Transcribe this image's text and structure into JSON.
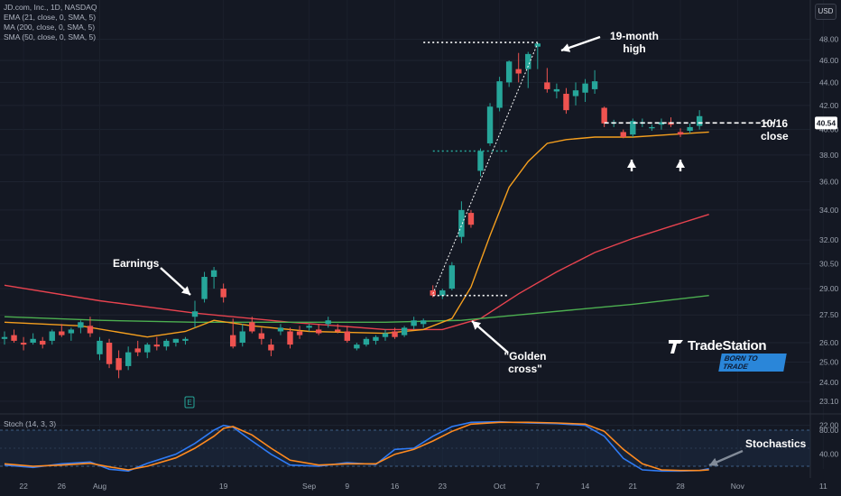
{
  "legend": {
    "title": "JD.com, Inc., 1D, NASDAQ",
    "ema": "EMA (21, close, 0, SMA, 5)",
    "ma": "MA (200, close, 0, SMA, 5)",
    "sma": "SMA (50, close, 0, SMA, 5)",
    "stoch": "Stoch (14, 3, 3)"
  },
  "currency": "USD",
  "brand": {
    "name": "TradeStation",
    "tagline": "BORN TO TRADE"
  },
  "annotations": {
    "high": "19-month high",
    "close": "10/16 close",
    "earnings": "Earnings",
    "golden": "\"Golden cross\"",
    "stoch": "Stochastics"
  },
  "colors": {
    "background": "#141823",
    "up": "#26a69a",
    "down": "#ef5350",
    "ema21": "#f59f1e",
    "ma200": "#4caf50",
    "sma50": "#e8434f",
    "stoch_k": "#2f7bf5",
    "stoch_d": "#ff8a1f"
  },
  "chart_data": [
    {
      "type": "candlestick",
      "symbol": "JD.com, Inc.",
      "interval": "1D",
      "exchange": "NASDAQ",
      "y_axis": {
        "scale": "log",
        "ticks": [
          "48.00",
          "46.00",
          "44.00",
          "42.00",
          "40.00",
          "38.00",
          "36.00",
          "34.00",
          "32.00",
          "30.50",
          "29.00",
          "27.50",
          "26.00",
          "25.00",
          "24.00",
          "23.10",
          "22.00"
        ],
        "last_price_label": "40.54",
        "ylim": [
          21.5,
          50
        ]
      },
      "x_axis": {
        "ticks": [
          "22",
          "26",
          "Aug",
          "19",
          "Sep",
          "9",
          "16",
          "23",
          "Oct",
          "7",
          "14",
          "21",
          "28",
          "Nov",
          "11"
        ]
      },
      "candles": [
        {
          "d": "07-18",
          "o": 26.2,
          "h": 26.6,
          "l": 25.9,
          "c": 26.3
        },
        {
          "d": "07-19",
          "o": 26.4,
          "h": 26.7,
          "l": 26.0,
          "c": 26.1
        },
        {
          "d": "07-22",
          "o": 26.0,
          "h": 26.3,
          "l": 25.6,
          "c": 25.9
        },
        {
          "d": "07-23",
          "o": 26.0,
          "h": 26.5,
          "l": 25.9,
          "c": 26.2
        },
        {
          "d": "07-24",
          "o": 26.1,
          "h": 26.3,
          "l": 25.7,
          "c": 25.9
        },
        {
          "d": "07-25",
          "o": 26.1,
          "h": 26.7,
          "l": 25.9,
          "c": 26.6
        },
        {
          "d": "07-26",
          "o": 26.6,
          "h": 27.0,
          "l": 26.3,
          "c": 26.4
        },
        {
          "d": "07-29",
          "o": 26.5,
          "h": 26.8,
          "l": 26.1,
          "c": 26.7
        },
        {
          "d": "07-30",
          "o": 26.8,
          "h": 27.2,
          "l": 26.5,
          "c": 27.1
        },
        {
          "d": "07-31",
          "o": 26.9,
          "h": 27.4,
          "l": 26.3,
          "c": 26.5
        },
        {
          "d": "08-01",
          "o": 25.4,
          "h": 26.3,
          "l": 25.1,
          "c": 26.1
        },
        {
          "d": "08-02",
          "o": 26.0,
          "h": 26.2,
          "l": 24.7,
          "c": 24.9
        },
        {
          "d": "08-05",
          "o": 25.2,
          "h": 25.6,
          "l": 24.2,
          "c": 24.6
        },
        {
          "d": "08-06",
          "o": 24.8,
          "h": 25.8,
          "l": 24.6,
          "c": 25.5
        },
        {
          "d": "08-07",
          "o": 25.7,
          "h": 26.1,
          "l": 25.3,
          "c": 25.5
        },
        {
          "d": "08-08",
          "o": 25.5,
          "h": 26.0,
          "l": 25.2,
          "c": 25.9
        },
        {
          "d": "08-09",
          "o": 25.9,
          "h": 26.3,
          "l": 25.6,
          "c": 25.8
        },
        {
          "d": "08-12",
          "o": 25.8,
          "h": 26.2,
          "l": 25.6,
          "c": 26.1
        },
        {
          "d": "08-13",
          "o": 26.0,
          "h": 26.2,
          "l": 25.8,
          "c": 26.2
        },
        {
          "d": "08-14",
          "o": 26.1,
          "h": 26.3,
          "l": 25.9,
          "c": 26.2
        },
        {
          "d": "08-15",
          "o": 27.4,
          "h": 28.3,
          "l": 26.8,
          "c": 27.7
        },
        {
          "d": "08-16",
          "o": 28.4,
          "h": 30.0,
          "l": 28.2,
          "c": 29.7
        },
        {
          "d": "08-19",
          "o": 29.7,
          "h": 30.3,
          "l": 29.0,
          "c": 30.1
        },
        {
          "d": "08-20",
          "o": 29.0,
          "h": 29.3,
          "l": 28.2,
          "c": 28.5
        },
        {
          "d": "08-21",
          "o": 26.4,
          "h": 27.3,
          "l": 25.7,
          "c": 25.8
        },
        {
          "d": "08-22",
          "o": 26.0,
          "h": 27.0,
          "l": 25.8,
          "c": 26.6
        },
        {
          "d": "08-23",
          "o": 27.1,
          "h": 27.4,
          "l": 26.5,
          "c": 26.6
        },
        {
          "d": "08-26",
          "o": 26.5,
          "h": 26.8,
          "l": 25.9,
          "c": 26.2
        },
        {
          "d": "08-27",
          "o": 25.9,
          "h": 26.2,
          "l": 25.3,
          "c": 25.6
        },
        {
          "d": "08-28",
          "o": 26.6,
          "h": 27.0,
          "l": 26.4,
          "c": 26.8
        },
        {
          "d": "08-29",
          "o": 26.6,
          "h": 26.8,
          "l": 25.7,
          "c": 25.9
        },
        {
          "d": "08-30",
          "o": 26.6,
          "h": 26.9,
          "l": 26.2,
          "c": 26.4
        },
        {
          "d": "09-03",
          "o": 26.8,
          "h": 27.0,
          "l": 26.6,
          "c": 26.9
        },
        {
          "d": "09-04",
          "o": 26.7,
          "h": 27.0,
          "l": 26.4,
          "c": 26.5
        },
        {
          "d": "09-05",
          "o": 27.0,
          "h": 27.4,
          "l": 26.8,
          "c": 27.2
        },
        {
          "d": "09-06",
          "o": 26.7,
          "h": 27.0,
          "l": 26.5,
          "c": 26.6
        },
        {
          "d": "09-09",
          "o": 26.6,
          "h": 26.9,
          "l": 26.0,
          "c": 26.1
        },
        {
          "d": "09-10",
          "o": 25.7,
          "h": 26.0,
          "l": 25.6,
          "c": 25.9
        },
        {
          "d": "09-11",
          "o": 25.9,
          "h": 26.3,
          "l": 25.8,
          "c": 26.2
        },
        {
          "d": "09-12",
          "o": 26.1,
          "h": 26.4,
          "l": 25.9,
          "c": 26.3
        },
        {
          "d": "09-13",
          "o": 26.3,
          "h": 26.7,
          "l": 26.1,
          "c": 26.5
        },
        {
          "d": "09-16",
          "o": 26.6,
          "h": 26.8,
          "l": 26.2,
          "c": 26.3
        },
        {
          "d": "09-17",
          "o": 26.4,
          "h": 26.9,
          "l": 26.3,
          "c": 26.8
        },
        {
          "d": "09-18",
          "o": 26.9,
          "h": 27.4,
          "l": 26.7,
          "c": 27.2
        },
        {
          "d": "09-19",
          "o": 27.0,
          "h": 27.3,
          "l": 26.8,
          "c": 27.2
        },
        {
          "d": "09-20",
          "o": 28.9,
          "h": 29.2,
          "l": 28.5,
          "c": 28.6
        },
        {
          "d": "09-23",
          "o": 28.6,
          "h": 29.0,
          "l": 28.4,
          "c": 28.9
        },
        {
          "d": "09-24",
          "o": 29.0,
          "h": 30.6,
          "l": 28.9,
          "c": 30.4
        },
        {
          "d": "09-25",
          "o": 32.2,
          "h": 34.6,
          "l": 31.8,
          "c": 34.0
        },
        {
          "d": "09-26",
          "o": 33.8,
          "h": 34.0,
          "l": 32.8,
          "c": 33.0
        },
        {
          "d": "09-27",
          "o": 36.8,
          "h": 38.5,
          "l": 36.4,
          "c": 38.3
        },
        {
          "d": "09-30",
          "o": 38.9,
          "h": 42.2,
          "l": 38.7,
          "c": 41.9
        },
        {
          "d": "10-01",
          "o": 41.8,
          "h": 44.5,
          "l": 41.5,
          "c": 44.1
        },
        {
          "d": "10-02",
          "o": 44.0,
          "h": 46.0,
          "l": 43.6,
          "c": 45.9
        },
        {
          "d": "10-03",
          "o": 45.2,
          "h": 46.7,
          "l": 44.0,
          "c": 44.8
        },
        {
          "d": "10-04",
          "o": 45.2,
          "h": 46.8,
          "l": 43.5,
          "c": 46.6
        },
        {
          "d": "10-07",
          "o": 47.3,
          "h": 47.7,
          "l": 45.2,
          "c": 47.6
        },
        {
          "d": "10-08",
          "o": 44.0,
          "h": 45.3,
          "l": 43.1,
          "c": 43.4
        },
        {
          "d": "10-09",
          "o": 43.2,
          "h": 43.9,
          "l": 42.6,
          "c": 43.4
        },
        {
          "d": "10-10",
          "o": 43.0,
          "h": 43.5,
          "l": 41.3,
          "c": 41.6
        },
        {
          "d": "10-11",
          "o": 42.8,
          "h": 44.0,
          "l": 42.0,
          "c": 43.3
        },
        {
          "d": "10-14",
          "o": 43.1,
          "h": 44.3,
          "l": 42.3,
          "c": 43.9
        },
        {
          "d": "10-15",
          "o": 43.4,
          "h": 45.1,
          "l": 43.0,
          "c": 44.1
        },
        {
          "d": "10-16",
          "o": 41.8,
          "h": 41.9,
          "l": 40.2,
          "c": 40.5
        },
        {
          "d": "10-17",
          "o": 40.5,
          "h": 40.8,
          "l": 40.2,
          "c": 40.6
        },
        {
          "d": "10-18",
          "o": 39.8,
          "h": 40.0,
          "l": 39.3,
          "c": 39.4
        },
        {
          "d": "10-21",
          "o": 39.6,
          "h": 40.9,
          "l": 39.4,
          "c": 40.7
        },
        {
          "d": "10-22",
          "o": 40.5,
          "h": 40.9,
          "l": 40.2,
          "c": 40.6
        },
        {
          "d": "10-23",
          "o": 40.1,
          "h": 40.4,
          "l": 39.9,
          "c": 40.2
        },
        {
          "d": "10-24",
          "o": 40.4,
          "h": 40.9,
          "l": 40.0,
          "c": 40.6
        },
        {
          "d": "10-25",
          "o": 40.6,
          "h": 41.0,
          "l": 40.2,
          "c": 40.4
        },
        {
          "d": "10-28",
          "o": 39.8,
          "h": 40.1,
          "l": 39.4,
          "c": 39.6
        },
        {
          "d": "10-29",
          "o": 39.9,
          "h": 40.5,
          "l": 39.7,
          "c": 40.2
        },
        {
          "d": "10-30",
          "o": 40.3,
          "h": 41.6,
          "l": 40.0,
          "c": 41.1
        }
      ],
      "overlays": [
        {
          "name": "EMA (21, close, 0, SMA, 5)",
          "color": "#f59f1e",
          "values": [
            [
              0,
              27.1
            ],
            [
              8,
              26.9
            ],
            [
              15,
              26.3
            ],
            [
              19,
              26.6
            ],
            [
              22,
              27.2
            ],
            [
              26,
              26.9
            ],
            [
              32,
              26.6
            ],
            [
              40,
              26.5
            ],
            [
              44,
              26.7
            ],
            [
              47,
              27.3
            ],
            [
              49,
              29.1
            ],
            [
              51,
              32.3
            ],
            [
              53,
              35.6
            ],
            [
              55,
              37.5
            ],
            [
              57,
              38.9
            ],
            [
              59,
              39.2
            ],
            [
              62,
              39.4
            ],
            [
              66,
              39.4
            ],
            [
              70,
              39.6
            ],
            [
              74,
              39.8
            ]
          ]
        },
        {
          "name": "SMA (50, close, 0, SMA, 5)",
          "color": "#e8434f",
          "values": [
            [
              0,
              29.2
            ],
            [
              10,
              28.3
            ],
            [
              20,
              27.6
            ],
            [
              30,
              27.1
            ],
            [
              40,
              26.7
            ],
            [
              46,
              26.7
            ],
            [
              50,
              27.3
            ],
            [
              54,
              28.7
            ],
            [
              58,
              30.0
            ],
            [
              62,
              31.2
            ],
            [
              66,
              32.1
            ],
            [
              70,
              32.9
            ],
            [
              74,
              33.7
            ]
          ]
        },
        {
          "name": "MA (200, close, 0, SMA, 5)",
          "color": "#4caf50",
          "values": [
            [
              0,
              27.4
            ],
            [
              10,
              27.2
            ],
            [
              20,
              27.1
            ],
            [
              30,
              27.1
            ],
            [
              40,
              27.1
            ],
            [
              48,
              27.2
            ],
            [
              54,
              27.5
            ],
            [
              60,
              27.8
            ],
            [
              66,
              28.1
            ],
            [
              74,
              28.6
            ]
          ]
        }
      ],
      "levels": [
        {
          "price": 47.7,
          "style": "white-dotted",
          "from": 44,
          "to": 56
        },
        {
          "price": 38.3,
          "style": "green-dotted",
          "from": 45,
          "to": 53
        },
        {
          "price": 28.6,
          "style": "white-dotted",
          "from": 45,
          "to": 53
        },
        {
          "price": 40.54,
          "style": "white-dashed",
          "from": 63,
          "to": 81
        }
      ],
      "trendline": {
        "from": [
          45,
          28.7
        ],
        "to": [
          56,
          47.6
        ],
        "style": "white-dotted"
      }
    },
    {
      "type": "line",
      "title": "Stoch (14, 3, 3)",
      "y_axis": {
        "ticks": [
          "80.00",
          "40.00"
        ],
        "ylim": [
          0,
          100
        ],
        "band": [
          20,
          80
        ]
      },
      "series": [
        {
          "name": "%K",
          "color": "#2f7bf5",
          "values": [
            [
              0,
              22
            ],
            [
              3,
              18
            ],
            [
              6,
              24
            ],
            [
              9,
              27
            ],
            [
              11,
              15
            ],
            [
              13,
              12
            ],
            [
              15,
              25
            ],
            [
              18,
              40
            ],
            [
              20,
              58
            ],
            [
              22,
              80
            ],
            [
              23,
              88
            ],
            [
              24,
              85
            ],
            [
              26,
              62
            ],
            [
              28,
              40
            ],
            [
              30,
              22
            ],
            [
              33,
              20
            ],
            [
              36,
              26
            ],
            [
              39,
              23
            ],
            [
              41,
              48
            ],
            [
              43,
              50
            ],
            [
              45,
              70
            ],
            [
              47,
              86
            ],
            [
              49,
              93
            ],
            [
              52,
              94
            ],
            [
              55,
              92
            ],
            [
              58,
              91
            ],
            [
              61,
              88
            ],
            [
              63,
              70
            ],
            [
              65,
              33
            ],
            [
              67,
              14
            ],
            [
              69,
              12
            ],
            [
              71,
              12
            ],
            [
              73,
              13
            ],
            [
              74,
              16
            ]
          ]
        },
        {
          "name": "%D",
          "color": "#ff8a1f",
          "values": [
            [
              0,
              24
            ],
            [
              3,
              20
            ],
            [
              6,
              22
            ],
            [
              9,
              25
            ],
            [
              11,
              19
            ],
            [
              13,
              14
            ],
            [
              15,
              20
            ],
            [
              18,
              34
            ],
            [
              20,
              50
            ],
            [
              22,
              70
            ],
            [
              23,
              83
            ],
            [
              24,
              86
            ],
            [
              26,
              72
            ],
            [
              28,
              50
            ],
            [
              30,
              30
            ],
            [
              33,
              22
            ],
            [
              36,
              24
            ],
            [
              39,
              24
            ],
            [
              41,
              40
            ],
            [
              43,
              48
            ],
            [
              45,
              62
            ],
            [
              47,
              78
            ],
            [
              49,
              90
            ],
            [
              52,
              93
            ],
            [
              55,
              93
            ],
            [
              58,
              92
            ],
            [
              61,
              90
            ],
            [
              63,
              78
            ],
            [
              65,
              48
            ],
            [
              67,
              24
            ],
            [
              69,
              14
            ],
            [
              71,
              13
            ],
            [
              73,
              13
            ],
            [
              74,
              14
            ]
          ]
        }
      ]
    }
  ]
}
